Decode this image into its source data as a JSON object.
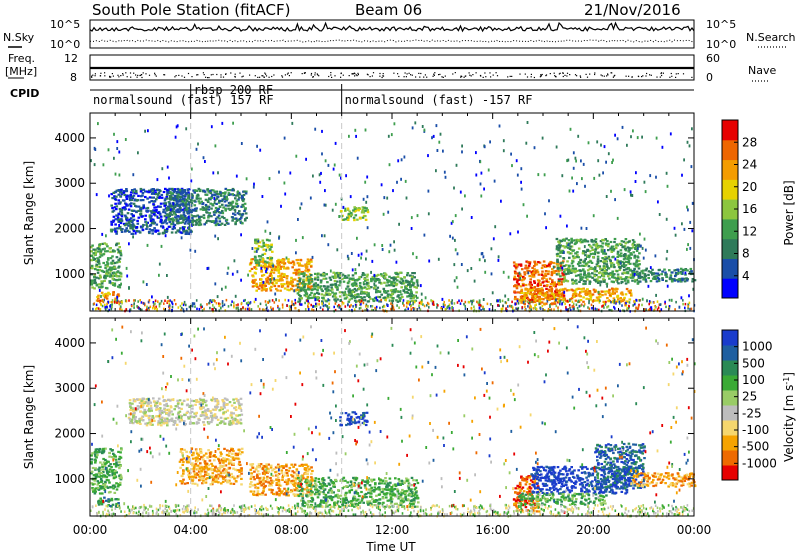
{
  "header": {
    "station": "South Pole Station (fitACF)",
    "beam": "Beam 06",
    "date": "21/Nov/2016"
  },
  "strips": {
    "nsky_label": "N.Sky",
    "nsearch_label": "N.Search",
    "freq_label_1": "Freq.",
    "freq_label_2": "[MHz]",
    "nave_label": "Nave",
    "cpid_label": "CPID",
    "noise_ticks": [
      "10^5",
      "10^0"
    ],
    "freq_ticks": [
      "12",
      "8"
    ],
    "nave_ticks": [
      "60",
      "0"
    ],
    "cpid_segments": [
      {
        "label": "normalsound (fast) 157 RF",
        "start": 0.0,
        "end": 4.0
      },
      {
        "label": "rbsp 200 RF",
        "start": 4.0,
        "end": 10.0
      },
      {
        "label": "normalsound (fast) -157 RF",
        "start": 10.0,
        "end": 24.0
      }
    ]
  },
  "colors": {
    "power": [
      "#0000ff",
      "#1a4ea8",
      "#2f7a5a",
      "#3e9e4e",
      "#8cc63f",
      "#e6d200",
      "#f39c00",
      "#ee6600",
      "#e60000"
    ],
    "velocity": [
      "#e60000",
      "#ee6a00",
      "#f5a300",
      "#f5d76e",
      "#bdbdbd",
      "#99cc66",
      "#3aaa35",
      "#2a8a55",
      "#1f5fa0",
      "#1a3ccc"
    ]
  },
  "chart_data": [
    {
      "type": "heatmap",
      "panel": "power",
      "xlabel": "",
      "ylabel": "Slant Range [km]",
      "xlim": [
        0,
        24
      ],
      "ylim": [
        180,
        4550
      ],
      "yticks": [
        1000,
        2000,
        3000,
        4000
      ],
      "colorbar_label": "Power [dB]",
      "colorbar_ticks": [
        "4",
        "8",
        "12",
        "16",
        "20",
        "24",
        "28"
      ],
      "colorbar_range": [
        0,
        32
      ],
      "regions": [
        {
          "t0": 0.0,
          "t1": 1.2,
          "r0": 700,
          "r1": 1700,
          "level": 3
        },
        {
          "t0": 0.2,
          "t1": 1.1,
          "r0": 400,
          "r1": 620,
          "level": 6
        },
        {
          "t0": 0.8,
          "t1": 4.0,
          "r0": 1900,
          "r1": 2900,
          "level": 1
        },
        {
          "t0": 3.0,
          "t1": 6.2,
          "r0": 2100,
          "r1": 2900,
          "level": 2
        },
        {
          "t0": 6.3,
          "t1": 8.8,
          "r0": 650,
          "r1": 1350,
          "level": 6
        },
        {
          "t0": 6.5,
          "t1": 7.2,
          "r0": 1200,
          "r1": 1800,
          "level": 4
        },
        {
          "t0": 8.2,
          "t1": 13.0,
          "r0": 400,
          "r1": 1050,
          "level": 3
        },
        {
          "t0": 9.9,
          "t1": 11.0,
          "r0": 2200,
          "r1": 2500,
          "level": 4
        },
        {
          "t0": 16.8,
          "t1": 18.8,
          "r0": 350,
          "r1": 1300,
          "level": 7
        },
        {
          "t0": 17.0,
          "t1": 21.5,
          "r0": 400,
          "r1": 700,
          "level": 6
        },
        {
          "t0": 18.5,
          "t1": 21.8,
          "r0": 800,
          "r1": 1800,
          "level": 3
        },
        {
          "t0": 21.5,
          "t1": 24.0,
          "r0": 850,
          "r1": 1150,
          "level": 2
        }
      ]
    },
    {
      "type": "heatmap",
      "panel": "velocity",
      "xlabel": "Time UT",
      "ylabel": "Slant Range [km]",
      "xlim": [
        0,
        24
      ],
      "ylim": [
        180,
        4550
      ],
      "xticks": [
        "00:00",
        "04:00",
        "08:00",
        "12:00",
        "16:00",
        "20:00",
        "00:00"
      ],
      "yticks": [
        1000,
        2000,
        3000,
        4000
      ],
      "colorbar_label": "Velocity [m s-1]",
      "colorbar_ticks": [
        "-1000",
        "-500",
        "-100",
        "-25",
        "25",
        "100",
        "500",
        "1000"
      ],
      "regions": [
        {
          "t0": 0.0,
          "t1": 1.2,
          "r0": 700,
          "r1": 1700,
          "level": 6
        },
        {
          "t0": 0.2,
          "t1": 1.1,
          "r0": 400,
          "r1": 620,
          "level": 7
        },
        {
          "t0": 1.5,
          "t1": 6.0,
          "r0": 2200,
          "r1": 2800,
          "level": 4
        },
        {
          "t0": 3.5,
          "t1": 6.0,
          "r0": 900,
          "r1": 1700,
          "level": 2
        },
        {
          "t0": 6.3,
          "t1": 8.8,
          "r0": 650,
          "r1": 1350,
          "level": 2
        },
        {
          "t0": 8.2,
          "t1": 13.0,
          "r0": 400,
          "r1": 1050,
          "level": 6
        },
        {
          "t0": 9.9,
          "t1": 11.0,
          "r0": 2200,
          "r1": 2500,
          "level": 9
        },
        {
          "t0": 16.8,
          "t1": 17.8,
          "r0": 300,
          "r1": 1100,
          "level": 1
        },
        {
          "t0": 17.5,
          "t1": 21.5,
          "r0": 700,
          "r1": 1300,
          "level": 9
        },
        {
          "t0": 17.0,
          "t1": 20.5,
          "r0": 450,
          "r1": 700,
          "level": 6
        },
        {
          "t0": 20.0,
          "t1": 22.0,
          "r0": 800,
          "r1": 1800,
          "level": 8
        },
        {
          "t0": 21.5,
          "t1": 24.0,
          "r0": 850,
          "r1": 1150,
          "level": 2
        }
      ]
    }
  ]
}
